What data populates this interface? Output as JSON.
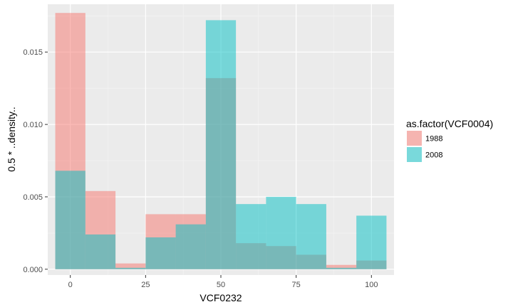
{
  "chart_data": {
    "type": "bar",
    "subtype": "overlapping histogram",
    "xlabel": "VCF0232",
    "ylabel": "0.5 * ..density..",
    "xlim": [
      -7.5,
      107.5
    ],
    "ylim": [
      -0.0004,
      0.0183
    ],
    "x_ticks": [
      0,
      25,
      50,
      75,
      100
    ],
    "x_tick_labels": [
      "0",
      "25",
      "50",
      "75",
      "100"
    ],
    "y_ticks": [
      0.0,
      0.005,
      0.01,
      0.015
    ],
    "y_tick_labels": [
      "0.000",
      "0.005",
      "0.010",
      "0.015"
    ],
    "bin_edges": [
      -5,
      5,
      15,
      25,
      35,
      45,
      55,
      65,
      75,
      85,
      95,
      105
    ],
    "grid": true,
    "legend": {
      "title": "as.factor(VCF0004)",
      "position": "right"
    },
    "series": [
      {
        "name": "1988",
        "color": "#F8766D",
        "values": [
          0.0177,
          0.0054,
          0.0004,
          0.0038,
          0.0038,
          0.0132,
          0.0018,
          0.0016,
          0.001,
          0.0003,
          0.0006
        ]
      },
      {
        "name": "2008",
        "color": "#00BFC4",
        "values": [
          0.0068,
          0.0024,
          0.0001,
          0.0022,
          0.0031,
          0.0172,
          0.0045,
          0.005,
          0.0045,
          0.0001,
          0.0037
        ]
      }
    ]
  }
}
